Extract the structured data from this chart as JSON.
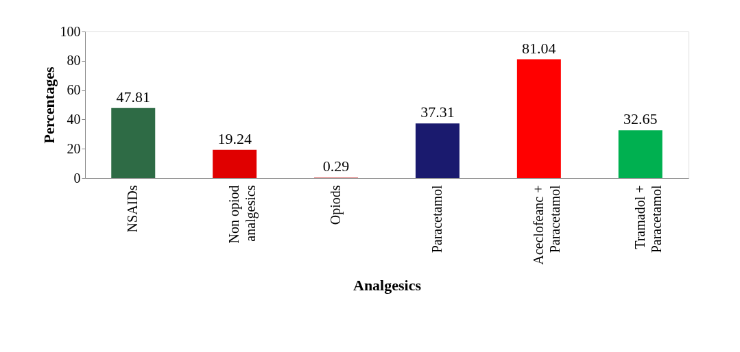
{
  "chart_data": {
    "type": "bar",
    "xlabel": "Analgesics",
    "ylabel": "Percentages",
    "categories": [
      "NSAIDs",
      "Non opiod analgesics",
      "Opiods",
      "Paracetamol",
      "Aceclofeanc + Paracetamol",
      "Tramadol + Paracetamol"
    ],
    "values": [
      47.81,
      19.24,
      0.29,
      37.31,
      81.04,
      32.65
    ],
    "colors": [
      "#2e6b45",
      "#e00000",
      "#c00000",
      "#1a1a6e",
      "#ff0000",
      "#00b050"
    ],
    "ylim": [
      0,
      100
    ],
    "yticks": [
      0,
      20,
      40,
      60,
      80,
      100
    ],
    "grid": false,
    "data_labels": true
  }
}
